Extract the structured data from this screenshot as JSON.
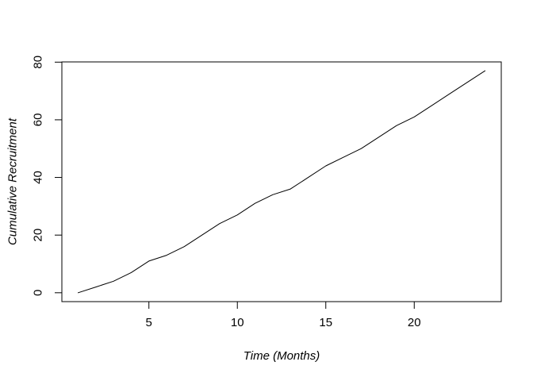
{
  "figure": {
    "background_color": "#ffffff",
    "axis_color": "#000000",
    "text_color": "#000000"
  },
  "chart_data": {
    "type": "line",
    "title": "",
    "xlabel": "Time (Months)",
    "ylabel": "Cumulative Recruitment",
    "x": [
      1,
      2,
      3,
      4,
      5,
      6,
      7,
      8,
      9,
      10,
      11,
      12,
      13,
      14,
      15,
      16,
      17,
      18,
      19,
      20,
      21,
      22,
      23,
      24
    ],
    "y": [
      0,
      2,
      4,
      7,
      11,
      13,
      16,
      20,
      24,
      27,
      31,
      34,
      36,
      40,
      44,
      47,
      50,
      54,
      58,
      61,
      65,
      69,
      73,
      77
    ],
    "xticks": [
      5,
      10,
      15,
      20
    ],
    "yticks": [
      0,
      20,
      40,
      60,
      80
    ],
    "xlim": [
      0.08,
      24.92
    ],
    "ylim": [
      -3.08,
      80.08
    ],
    "line_color": "#000000",
    "line_width": 1,
    "grid": false,
    "legend": null
  }
}
